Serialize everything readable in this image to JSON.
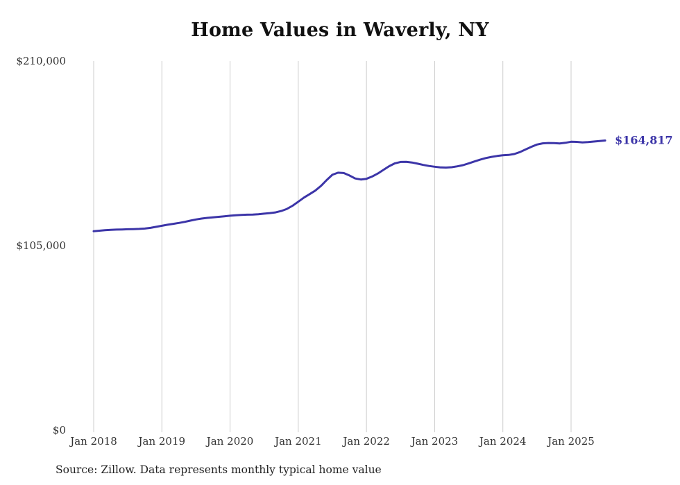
{
  "title": "Home Values in Waverly, NY",
  "source_note": "Source: Zillow. Data represents monthly typical home value",
  "latest_value_label": "$164,817",
  "colors": {
    "line": "#3c35a8",
    "grid": "#cccccc",
    "axis_text": "#333333",
    "title": "#111111"
  },
  "chart_data": {
    "type": "line",
    "title": "Home Values in Waverly, NY",
    "xlabel": "",
    "ylabel": "",
    "ylim": [
      0,
      210000
    ],
    "grid": "vertical-only",
    "legend": "none",
    "x_start": "2018-01",
    "x_end": "2025-07",
    "x_tick_labels": [
      "Jan 2018",
      "Jan 2019",
      "Jan 2020",
      "Jan 2021",
      "Jan 2022",
      "Jan 2023",
      "Jan 2024",
      "Jan 2025"
    ],
    "y_ticks": [
      {
        "value": 0,
        "label": "$0"
      },
      {
        "value": 105000,
        "label": "$105,000"
      },
      {
        "value": 210000,
        "label": "$210,000"
      }
    ],
    "final_value": 164817,
    "series": [
      {
        "name": "Typical home value (monthly)",
        "values": [
          113200,
          113500,
          113800,
          114000,
          114100,
          114200,
          114300,
          114400,
          114500,
          114700,
          115100,
          115700,
          116300,
          116900,
          117400,
          117900,
          118500,
          119200,
          119900,
          120400,
          120800,
          121100,
          121400,
          121700,
          122000,
          122300,
          122500,
          122600,
          122700,
          122900,
          123200,
          123500,
          123900,
          124700,
          125900,
          127700,
          130000,
          132300,
          134300,
          136300,
          139000,
          142300,
          145300,
          146500,
          146300,
          144900,
          143200,
          142600,
          143000,
          144300,
          146000,
          148100,
          150200,
          151800,
          152600,
          152700,
          152300,
          151600,
          150900,
          150300,
          149900,
          149500,
          149400,
          149600,
          150100,
          150800,
          151800,
          152900,
          153900,
          154800,
          155500,
          156000,
          156400,
          156600,
          157100,
          158200,
          159700,
          161200,
          162500,
          163200,
          163400,
          163300,
          163100,
          163500,
          164100,
          164000,
          163700,
          163900,
          164200,
          164500,
          164817
        ]
      }
    ]
  }
}
